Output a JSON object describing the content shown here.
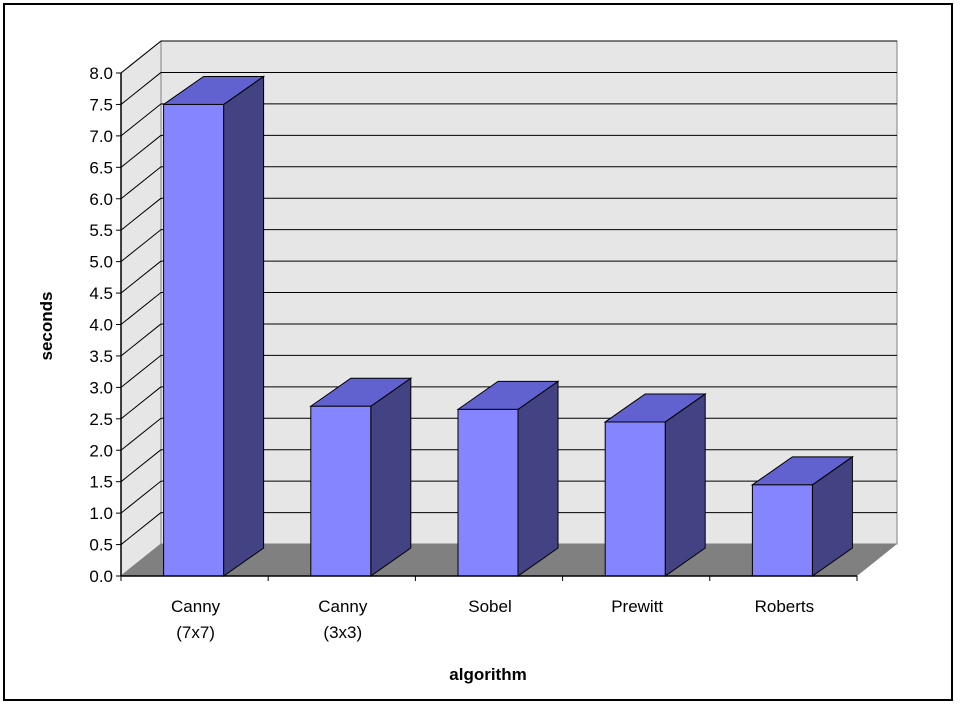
{
  "chart_data": {
    "type": "bar",
    "title": "",
    "xlabel": "algorithm",
    "ylabel": "seconds",
    "categories": [
      [
        "Canny",
        "(7x7)"
      ],
      [
        "Canny",
        "(3x3)"
      ],
      [
        "Sobel"
      ],
      [
        "Prewitt"
      ],
      [
        "Roberts"
      ]
    ],
    "values": [
      7.5,
      2.7,
      2.65,
      2.45,
      1.45
    ],
    "ylim": [
      0,
      8
    ],
    "yticks": [
      "0.0",
      "0.5",
      "1.0",
      "1.5",
      "2.0",
      "2.5",
      "3.0",
      "3.5",
      "4.0",
      "4.5",
      "5.0",
      "5.5",
      "6.0",
      "6.5",
      "7.0",
      "7.5",
      "8.0"
    ],
    "grid": true,
    "legend": "none",
    "colors": {
      "bar_front": "#8585FF",
      "bar_side": "#434383",
      "bar_top": "#6161CF",
      "wall": "#E6E6E6",
      "floor": "#808080"
    }
  }
}
